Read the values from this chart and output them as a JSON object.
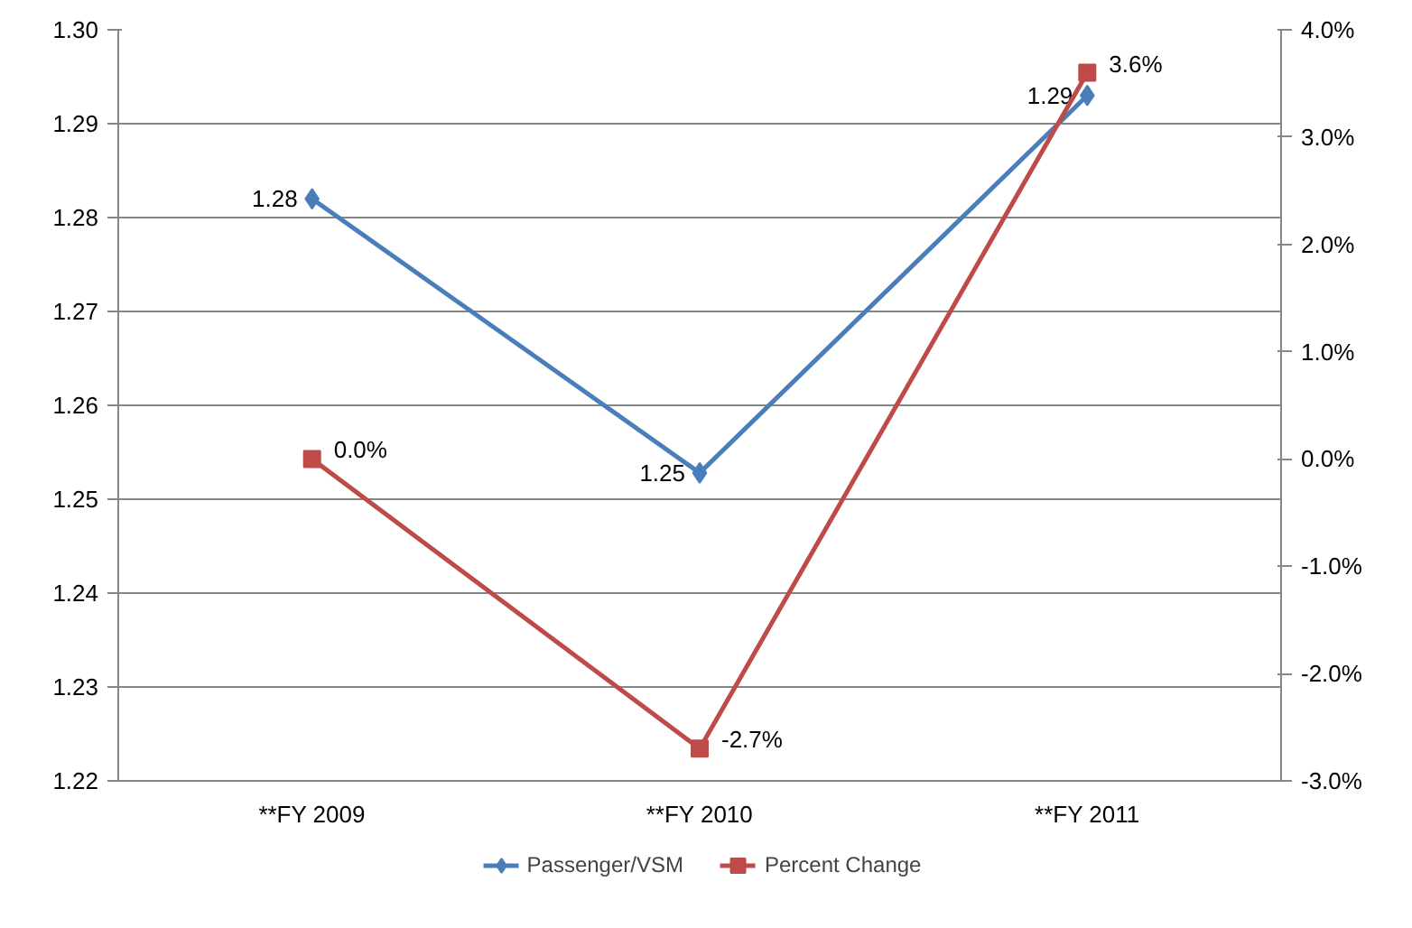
{
  "chart_data": {
    "type": "line",
    "categories": [
      "**FY 2009",
      "**FY 2010",
      "**FY 2011"
    ],
    "series": [
      {
        "name": "Passenger/VSM",
        "color": "#4a7ebb",
        "marker": "diamond",
        "values": [
          1.282,
          1.2528,
          1.293
        ],
        "value_labels": [
          "1.28",
          "1.25",
          "1.29"
        ]
      },
      {
        "name": "Percent Change",
        "color": "#be4b48",
        "marker": "square",
        "axis": "y2",
        "values": [
          0.0,
          -2.7,
          3.6
        ],
        "value_labels": [
          "0.0%",
          "-2.7%",
          "3.6%"
        ]
      }
    ],
    "ylim": [
      1.22,
      1.3
    ],
    "yticks": [
      {
        "value": 1.22,
        "label": "1.22"
      },
      {
        "value": 1.23,
        "label": "1.23"
      },
      {
        "value": 1.24,
        "label": "1.24"
      },
      {
        "value": 1.25,
        "label": "1.25"
      },
      {
        "value": 1.26,
        "label": "1.26"
      },
      {
        "value": 1.27,
        "label": "1.27"
      },
      {
        "value": 1.28,
        "label": "1.28"
      },
      {
        "value": 1.29,
        "label": "1.29"
      },
      {
        "value": 1.3,
        "label": "1.30"
      }
    ],
    "y2lim": [
      -3.0,
      4.0
    ],
    "y2ticks": [
      {
        "value": -3,
        "label": "-3.0%"
      },
      {
        "value": -2,
        "label": "-2.0%"
      },
      {
        "value": -1,
        "label": "-1.0%"
      },
      {
        "value": 0,
        "label": "0.0%"
      },
      {
        "value": 1,
        "label": "1.0%"
      },
      {
        "value": 2,
        "label": "2.0%"
      },
      {
        "value": 3,
        "label": "3.0%"
      },
      {
        "value": 4,
        "label": "4.0%"
      }
    ],
    "grid": "y",
    "legend": "bottom"
  }
}
